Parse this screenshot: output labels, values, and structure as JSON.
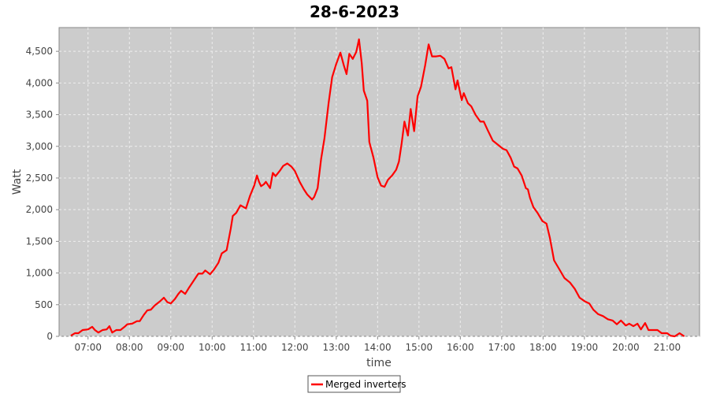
{
  "chart_data": {
    "type": "line",
    "title": "28-6-2023",
    "xlabel": "time",
    "ylabel": "Watt",
    "xlim": [
      "06:18",
      "21:47"
    ],
    "ylim": [
      0,
      4875
    ],
    "grid": true,
    "legend_placement": "bottom",
    "background": "#cccccc",
    "x_ticks": [
      "07:00",
      "08:00",
      "09:00",
      "10:00",
      "11:00",
      "12:00",
      "13:00",
      "14:00",
      "15:00",
      "16:00",
      "17:00",
      "18:00",
      "19:00",
      "20:00",
      "21:00"
    ],
    "y_ticks": [
      0,
      500,
      1000,
      1500,
      2000,
      2500,
      3000,
      3500,
      4000,
      4500
    ],
    "y_tick_labels": [
      "0",
      "500",
      "1,000",
      "1,500",
      "2,000",
      "2,500",
      "3,000",
      "3,500",
      "4,000",
      "4,500"
    ],
    "series": [
      {
        "name": "Merged inverters",
        "color": "#ff0000",
        "x": [
          "06:35",
          "06:41",
          "06:46",
          "06:52",
          "07:00",
          "07:06",
          "07:10",
          "07:15",
          "07:21",
          "07:27",
          "07:31",
          "07:35",
          "07:41",
          "07:47",
          "07:53",
          "07:57",
          "08:04",
          "08:11",
          "08:15",
          "08:21",
          "08:26",
          "08:31",
          "08:37",
          "08:44",
          "08:50",
          "08:55",
          "09:00",
          "09:06",
          "09:11",
          "09:15",
          "09:21",
          "09:26",
          "09:34",
          "09:40",
          "09:46",
          "09:50",
          "09:57",
          "10:03",
          "10:09",
          "10:14",
          "10:21",
          "10:27",
          "10:30",
          "10:35",
          "10:41",
          "10:49",
          "10:55",
          "11:01",
          "11:05",
          "11:08",
          "11:11",
          "11:15",
          "11:18",
          "11:24",
          "11:28",
          "11:32",
          "11:38",
          "11:43",
          "11:49",
          "11:55",
          "12:00",
          "12:07",
          "12:13",
          "12:18",
          "12:25",
          "12:28",
          "12:33",
          "12:38",
          "12:43",
          "12:49",
          "12:54",
          "13:00",
          "13:06",
          "13:11",
          "13:15",
          "13:19",
          "13:24",
          "13:29",
          "13:33",
          "13:37",
          "13:40",
          "13:45",
          "13:48",
          "13:54",
          "14:00",
          "14:05",
          "14:10",
          "14:15",
          "14:21",
          "14:27",
          "14:31",
          "14:35",
          "14:39",
          "14:44",
          "14:48",
          "14:53",
          "14:58",
          "15:03",
          "15:09",
          "15:14",
          "15:19",
          "15:25",
          "15:31",
          "15:37",
          "15:43",
          "15:47",
          "15:53",
          "15:56",
          "16:02",
          "16:05",
          "16:11",
          "16:16",
          "16:22",
          "16:29",
          "16:34",
          "16:40",
          "16:47",
          "16:54",
          "17:02",
          "17:07",
          "17:13",
          "17:18",
          "17:23",
          "17:29",
          "17:35",
          "17:38",
          "17:41",
          "17:46",
          "17:52",
          "17:59",
          "18:05",
          "18:10",
          "18:16",
          "18:23",
          "18:31",
          "18:39",
          "18:46",
          "18:53",
          "19:01",
          "19:07",
          "19:13",
          "19:20",
          "19:27",
          "19:34",
          "19:41",
          "19:47",
          "19:53",
          "20:00",
          "20:05",
          "20:11",
          "20:17",
          "20:22",
          "20:28",
          "20:33",
          "20:39",
          "20:46",
          "20:52",
          "21:00",
          "21:05",
          "21:11",
          "21:18",
          "21:25"
        ],
        "y": [
          10,
          50,
          50,
          100,
          110,
          150,
          100,
          60,
          100,
          110,
          160,
          60,
          100,
          100,
          150,
          190,
          200,
          240,
          240,
          340,
          410,
          420,
          490,
          550,
          610,
          540,
          520,
          590,
          670,
          720,
          670,
          760,
          890,
          990,
          990,
          1040,
          980,
          1060,
          1160,
          1310,
          1360,
          1700,
          1900,
          1950,
          2070,
          2020,
          2220,
          2380,
          2540,
          2440,
          2370,
          2400,
          2440,
          2340,
          2580,
          2530,
          2610,
          2690,
          2730,
          2680,
          2610,
          2440,
          2320,
          2240,
          2160,
          2200,
          2340,
          2800,
          3130,
          3690,
          4090,
          4300,
          4480,
          4280,
          4140,
          4460,
          4380,
          4490,
          4690,
          4310,
          3880,
          3720,
          3070,
          2820,
          2510,
          2380,
          2360,
          2470,
          2540,
          2630,
          2760,
          3050,
          3390,
          3170,
          3590,
          3240,
          3790,
          3940,
          4280,
          4610,
          4420,
          4420,
          4430,
          4380,
          4230,
          4250,
          3900,
          4040,
          3730,
          3840,
          3680,
          3630,
          3500,
          3390,
          3390,
          3250,
          3090,
          3030,
          2960,
          2940,
          2820,
          2680,
          2650,
          2540,
          2340,
          2320,
          2190,
          2040,
          1950,
          1820,
          1780,
          1550,
          1200,
          1070,
          920,
          850,
          750,
          610,
          550,
          520,
          420,
          350,
          320,
          270,
          250,
          190,
          250,
          170,
          200,
          160,
          200,
          110,
          210,
          100,
          100,
          100,
          50,
          50,
          10,
          0,
          50,
          0
        ]
      }
    ]
  }
}
